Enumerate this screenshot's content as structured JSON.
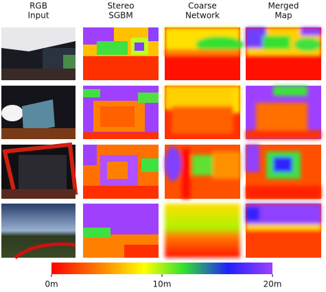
{
  "figure": {
    "columns": [
      [
        "RGB",
        "Input"
      ],
      [
        "Stereo",
        "SGBM"
      ],
      [
        "Coarse",
        "Network"
      ],
      [
        "Merged",
        "Map"
      ]
    ],
    "colorbar_labels": [
      "0m",
      "10m",
      "20m"
    ]
  }
}
